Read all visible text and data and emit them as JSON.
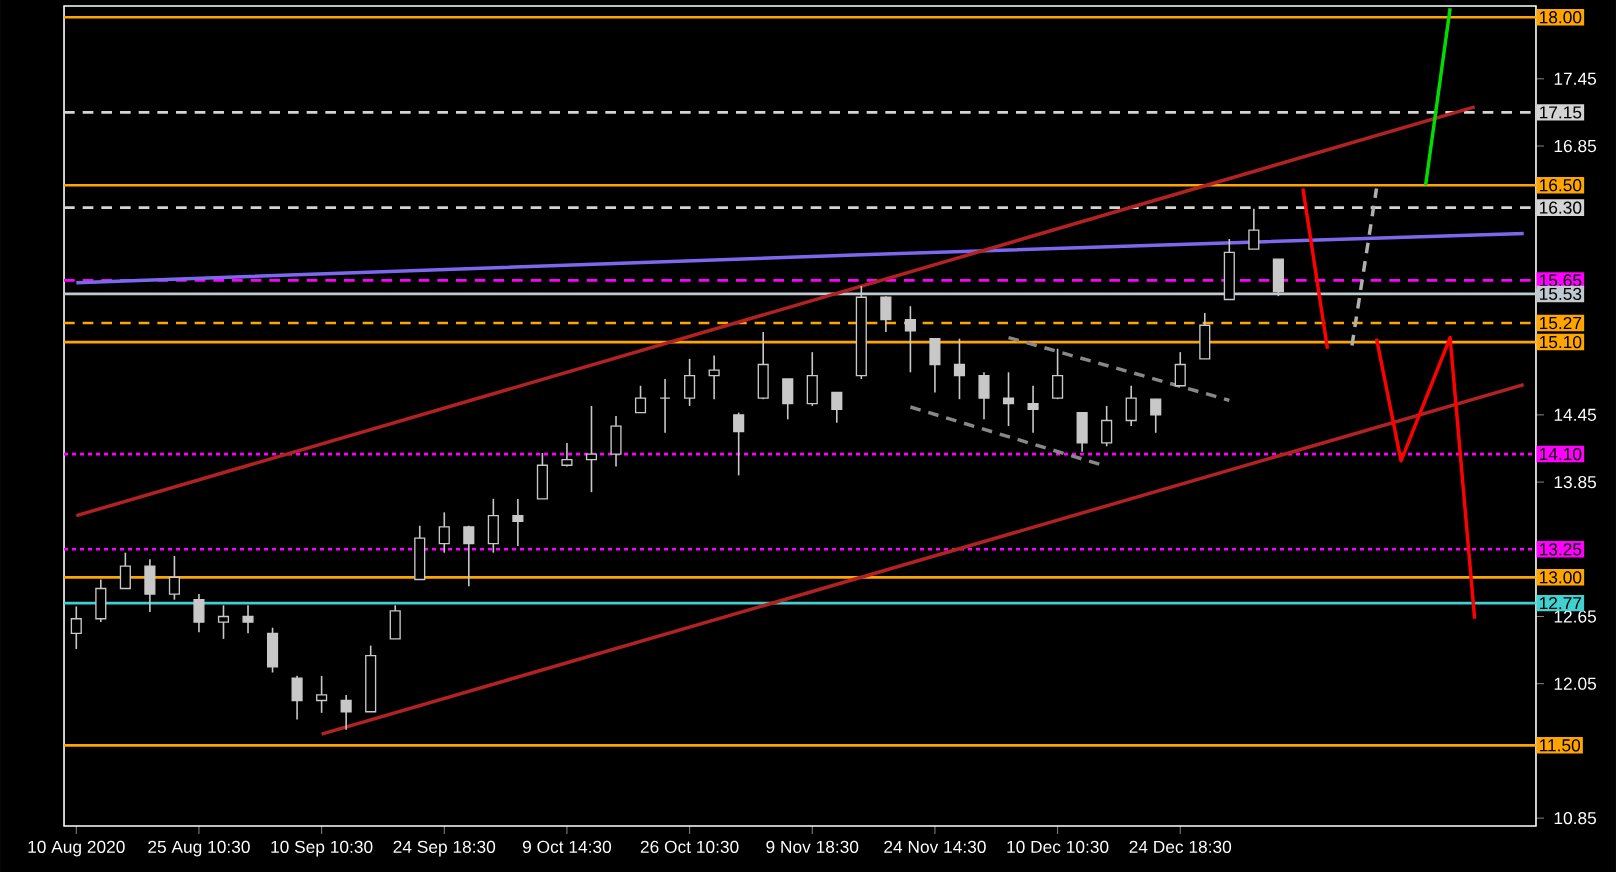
{
  "chart_data": {
    "type": "candlestick",
    "color": "#c8c8c8",
    "categories": [
      "10 Aug 2020",
      null,
      null,
      null,
      null,
      "25 Aug 10:30",
      null,
      null,
      null,
      null,
      "10 Sep 10:30",
      null,
      null,
      null,
      null,
      "24 Sep 18:30",
      null,
      null,
      null,
      null,
      "9 Oct 14:30",
      null,
      null,
      null,
      null,
      "26 Oct 10:30",
      null,
      null,
      null,
      null,
      "9 Nov 18:30",
      null,
      null,
      null,
      null,
      "24 Nov 14:30",
      null,
      null,
      null,
      null,
      "10 Dec 10:30",
      null,
      null,
      null,
      null,
      "24 Dec 18:30",
      null,
      null,
      null,
      null,
      null,
      null,
      null,
      null,
      null,
      null,
      null,
      null,
      null,
      null
    ],
    "ohlc": [
      [
        12.5,
        12.74,
        12.36,
        12.63
      ],
      [
        12.63,
        12.98,
        12.6,
        12.9
      ],
      [
        12.9,
        13.22,
        12.9,
        13.1
      ],
      [
        13.1,
        13.16,
        12.69,
        12.85
      ],
      [
        12.85,
        13.19,
        12.8,
        13.0
      ],
      [
        12.8,
        12.85,
        12.51,
        12.6
      ],
      [
        12.6,
        12.75,
        12.45,
        12.65
      ],
      [
        12.65,
        12.75,
        12.5,
        12.6
      ],
      [
        12.5,
        12.55,
        12.15,
        12.2
      ],
      [
        12.1,
        12.12,
        11.73,
        11.9
      ],
      [
        11.9,
        12.12,
        11.79,
        11.95
      ],
      [
        11.9,
        11.95,
        11.64,
        11.8
      ],
      [
        11.8,
        12.39,
        11.8,
        12.3
      ],
      [
        12.45,
        12.75,
        12.45,
        12.7
      ],
      [
        12.98,
        13.46,
        12.98,
        13.35
      ],
      [
        13.3,
        13.58,
        13.22,
        13.45
      ],
      [
        13.45,
        13.46,
        12.92,
        13.3
      ],
      [
        13.3,
        13.7,
        13.22,
        13.55
      ],
      [
        13.55,
        13.7,
        13.28,
        13.5
      ],
      [
        13.7,
        14.11,
        13.7,
        14.0
      ],
      [
        14.0,
        14.2,
        13.99,
        14.05
      ],
      [
        14.05,
        14.53,
        13.76,
        14.1
      ],
      [
        14.1,
        14.44,
        13.99,
        14.35
      ],
      [
        14.47,
        14.71,
        14.47,
        14.6
      ],
      [
        14.6,
        14.77,
        14.29,
        14.6
      ],
      [
        14.6,
        14.95,
        14.53,
        14.8
      ],
      [
        14.8,
        14.98,
        14.59,
        14.85
      ],
      [
        14.45,
        14.47,
        13.91,
        14.3
      ],
      [
        14.6,
        15.19,
        14.59,
        14.9
      ],
      [
        14.77,
        14.77,
        14.41,
        14.55
      ],
      [
        14.55,
        15.01,
        14.53,
        14.8
      ],
      [
        14.65,
        14.65,
        14.38,
        14.5
      ],
      [
        14.8,
        15.6,
        14.77,
        15.5
      ],
      [
        15.5,
        15.51,
        15.19,
        15.3
      ],
      [
        15.3,
        15.42,
        14.83,
        15.2
      ],
      [
        15.13,
        15.13,
        14.65,
        14.9
      ],
      [
        14.9,
        15.13,
        14.59,
        14.8
      ],
      [
        14.8,
        14.83,
        14.41,
        14.6
      ],
      [
        14.6,
        14.83,
        14.35,
        14.55
      ],
      [
        14.55,
        14.71,
        14.29,
        14.5
      ],
      [
        14.6,
        15.04,
        14.59,
        14.8
      ],
      [
        14.47,
        14.47,
        14.12,
        14.2
      ],
      [
        14.2,
        14.53,
        14.17,
        14.4
      ],
      [
        14.4,
        14.71,
        14.35,
        14.6
      ],
      [
        14.59,
        14.59,
        14.29,
        14.45
      ],
      [
        14.71,
        15.01,
        14.71,
        14.9
      ],
      [
        14.95,
        15.36,
        14.95,
        15.25
      ],
      [
        15.48,
        16.02,
        15.48,
        15.9
      ],
      [
        15.93,
        16.29,
        15.93,
        16.1
      ],
      [
        15.84,
        15.84,
        15.51,
        15.55
      ],
      null,
      null,
      null,
      null,
      null,
      null,
      null,
      null,
      null,
      null
    ],
    "ylim": [
      10.78,
      18.1
    ],
    "yticks": [
      {
        "value": 10.85,
        "label": "10.85"
      },
      {
        "value": 11.45,
        "label": null
      },
      {
        "value": 12.05,
        "label": "12.05"
      },
      {
        "value": 12.65,
        "label": "12.65"
      },
      {
        "value": 13.25,
        "label": null
      },
      {
        "value": 13.85,
        "label": "13.85"
      },
      {
        "value": 14.45,
        "label": "14.45"
      },
      {
        "value": 15.05,
        "label": null
      },
      {
        "value": 15.65,
        "label": null
      },
      {
        "value": 16.25,
        "label": null
      },
      {
        "value": 16.85,
        "label": "16.85"
      },
      {
        "value": 17.45,
        "label": "17.45"
      }
    ],
    "series": [
      {
        "type": "line",
        "color": "#7b68ee",
        "values": [
          15.63,
          null,
          null,
          null,
          null,
          null,
          null,
          null,
          null,
          null,
          null,
          null,
          null,
          null,
          null,
          null,
          null,
          null,
          null,
          null,
          null,
          null,
          null,
          null,
          null,
          null,
          null,
          null,
          null,
          null,
          null,
          null,
          15.88,
          null,
          null,
          null,
          null,
          null,
          null,
          null,
          null,
          null,
          null,
          null,
          null,
          null,
          null,
          null,
          null,
          null,
          null,
          null,
          null,
          null,
          null,
          null,
          null,
          null,
          null,
          16.07
        ]
      },
      {
        "type": "line",
        "color": "#b22222",
        "values": [
          13.55,
          null,
          null,
          null,
          null,
          null,
          null,
          null,
          null,
          null,
          null,
          null,
          null,
          null,
          null,
          null,
          null,
          null,
          null,
          null,
          null,
          null,
          null,
          null,
          null,
          null,
          null,
          null,
          null,
          null,
          null,
          null,
          null,
          null,
          null,
          null,
          null,
          null,
          null,
          null,
          null,
          null,
          null,
          null,
          null,
          null,
          null,
          null,
          null,
          null,
          null,
          null,
          null,
          null,
          null,
          null,
          null,
          17.2,
          null,
          null
        ]
      },
      {
        "type": "line",
        "color": "#b22222",
        "values": [
          null,
          null,
          null,
          null,
          null,
          null,
          null,
          null,
          null,
          null,
          11.6,
          null,
          null,
          null,
          null,
          null,
          null,
          null,
          null,
          null,
          null,
          null,
          null,
          null,
          null,
          null,
          null,
          null,
          null,
          null,
          null,
          null,
          null,
          null,
          null,
          null,
          null,
          null,
          null,
          null,
          null,
          null,
          null,
          null,
          null,
          null,
          null,
          null,
          null,
          null,
          null,
          null,
          null,
          null,
          null,
          null,
          null,
          null,
          null,
          14.72
        ]
      },
      {
        "type": "line",
        "color": "#888888",
        "line_style": "dashed",
        "values": [
          null,
          null,
          null,
          null,
          null,
          null,
          null,
          null,
          null,
          null,
          null,
          null,
          null,
          null,
          null,
          null,
          null,
          null,
          null,
          null,
          null,
          null,
          null,
          null,
          null,
          null,
          null,
          null,
          null,
          null,
          null,
          null,
          null,
          null,
          null,
          null,
          null,
          null,
          15.14,
          null,
          null,
          null,
          null,
          null,
          null,
          null,
          null,
          14.58,
          null,
          null,
          null,
          null,
          null,
          null,
          null,
          null,
          null,
          null,
          null,
          null
        ]
      },
      {
        "type": "line",
        "color": "#888888",
        "line_style": "dashed",
        "values": [
          null,
          null,
          null,
          null,
          null,
          null,
          null,
          null,
          null,
          null,
          null,
          null,
          null,
          null,
          null,
          null,
          null,
          null,
          null,
          null,
          null,
          null,
          null,
          null,
          null,
          null,
          null,
          null,
          null,
          null,
          null,
          null,
          null,
          null,
          14.52,
          null,
          null,
          null,
          null,
          null,
          null,
          null,
          13.99,
          null,
          null,
          null,
          null,
          null,
          null,
          null,
          null,
          null,
          null,
          null,
          null,
          null,
          null,
          null,
          null,
          null
        ]
      },
      {
        "type": "line",
        "color": "#ff0000",
        "values": [
          null,
          null,
          null,
          null,
          null,
          null,
          null,
          null,
          null,
          null,
          null,
          null,
          null,
          null,
          null,
          null,
          null,
          null,
          null,
          null,
          null,
          null,
          null,
          null,
          null,
          null,
          null,
          null,
          null,
          null,
          null,
          null,
          null,
          null,
          null,
          null,
          null,
          null,
          null,
          null,
          null,
          null,
          null,
          null,
          null,
          null,
          null,
          null,
          null,
          null,
          16.47,
          15.04,
          null,
          null,
          null,
          null,
          null,
          null,
          null,
          null
        ]
      },
      {
        "type": "line",
        "color": "#b0b0b0",
        "line_style": "dashed",
        "values": [
          null,
          null,
          null,
          null,
          null,
          null,
          null,
          null,
          null,
          null,
          null,
          null,
          null,
          null,
          null,
          null,
          null,
          null,
          null,
          null,
          null,
          null,
          null,
          null,
          null,
          null,
          null,
          null,
          null,
          null,
          null,
          null,
          null,
          null,
          null,
          null,
          null,
          null,
          null,
          null,
          null,
          null,
          null,
          null,
          null,
          null,
          null,
          null,
          null,
          null,
          null,
          null,
          15.07,
          16.47,
          null,
          null,
          null,
          null,
          null,
          null
        ]
      },
      {
        "type": "line",
        "color": "#00dd00",
        "values": [
          null,
          null,
          null,
          null,
          null,
          null,
          null,
          null,
          null,
          null,
          null,
          null,
          null,
          null,
          null,
          null,
          null,
          null,
          null,
          null,
          null,
          null,
          null,
          null,
          null,
          null,
          null,
          null,
          null,
          null,
          null,
          null,
          null,
          null,
          null,
          null,
          null,
          null,
          null,
          null,
          null,
          null,
          null,
          null,
          null,
          null,
          null,
          null,
          null,
          null,
          null,
          null,
          null,
          null,
          null,
          16.5,
          18.08,
          null,
          null,
          null
        ]
      },
      {
        "type": "line",
        "color": "#ff0000",
        "values": [
          null,
          null,
          null,
          null,
          null,
          null,
          null,
          null,
          null,
          null,
          null,
          null,
          null,
          null,
          null,
          null,
          null,
          null,
          null,
          null,
          null,
          null,
          null,
          null,
          null,
          null,
          null,
          null,
          null,
          null,
          null,
          null,
          null,
          null,
          null,
          null,
          null,
          null,
          null,
          null,
          null,
          null,
          null,
          null,
          null,
          null,
          null,
          null,
          null,
          null,
          null,
          null,
          null,
          15.13,
          14.04,
          null,
          15.14,
          12.63,
          null,
          null
        ]
      }
    ],
    "ref_lines": [
      {
        "axis": "y",
        "value": 18.0,
        "label": "18.00",
        "color": "#ffa500"
      },
      {
        "axis": "y",
        "value": 17.15,
        "label": "17.15",
        "color": "#d3d3d3",
        "line_style": "dashed"
      },
      {
        "axis": "y",
        "value": 16.5,
        "label": "16.50",
        "color": "#ffa500"
      },
      {
        "axis": "y",
        "value": 16.3,
        "label": "16.30",
        "color": "#d3d3d3",
        "line_style": "dashed"
      },
      {
        "axis": "y",
        "value": 15.65,
        "label": "15.65",
        "color": "#ff00ff",
        "line_style": "dashed"
      },
      {
        "axis": "y",
        "value": 15.53,
        "label": "15.53",
        "color": "#c0c8d0"
      },
      {
        "axis": "y",
        "value": 15.27,
        "label": "15.27",
        "color": "#ffa500",
        "line_style": "dashed"
      },
      {
        "axis": "y",
        "value": 15.1,
        "label": "15.10",
        "color": "#ffa500"
      },
      {
        "axis": "y",
        "value": 14.1,
        "label": "14.10",
        "color": "#ff00ff",
        "line_style": "dotted"
      },
      {
        "axis": "y",
        "value": 13.25,
        "label": "13.25",
        "color": "#ff00ff",
        "line_style": "dotted"
      },
      {
        "axis": "y",
        "value": 13.0,
        "label": "13.00",
        "color": "#ffa500"
      },
      {
        "axis": "y",
        "value": 12.77,
        "label": "12.77",
        "color": "#40d0d0"
      },
      {
        "axis": "y",
        "value": 11.5,
        "label": "11.50",
        "color": "#ffa500"
      }
    ]
  }
}
